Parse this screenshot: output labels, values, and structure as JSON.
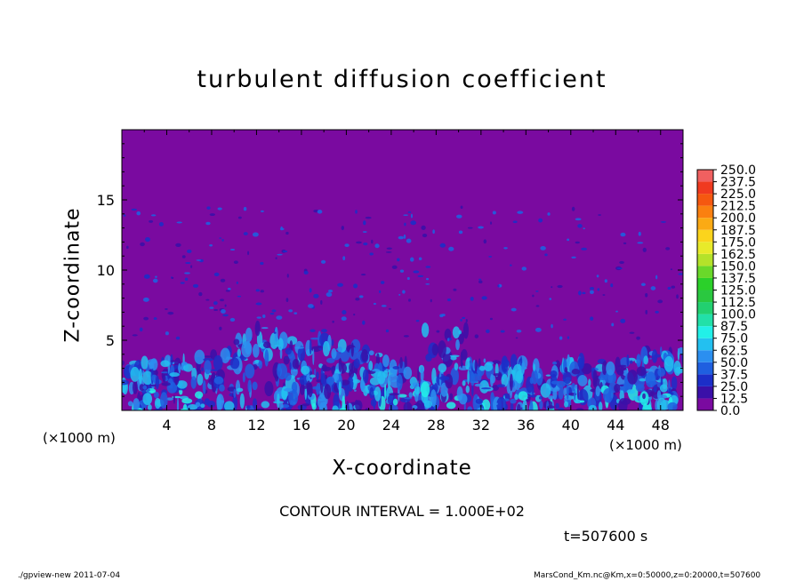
{
  "chart_data": {
    "type": "heatmap",
    "title": "turbulent diffusion coefficient",
    "xlabel": "X-coordinate",
    "ylabel": "Z-coordinate",
    "x_unit": "(×1000 m)",
    "xlim": [
      0,
      50
    ],
    "ylim": [
      0,
      20
    ],
    "x_ticks": [
      4,
      8,
      12,
      16,
      20,
      24,
      28,
      32,
      36,
      40,
      44,
      48
    ],
    "y_ticks": [
      5,
      10,
      15
    ],
    "colorbar": {
      "levels": [
        "0.0",
        "12.5",
        "25.0",
        "37.5",
        "50.0",
        "62.5",
        "75.0",
        "87.5",
        "100.0",
        "112.5",
        "125.0",
        "137.5",
        "150.0",
        "162.5",
        "175.0",
        "187.5",
        "200.0",
        "212.5",
        "225.0",
        "237.5",
        "250.0"
      ],
      "colors": [
        "#7a0aa0",
        "#3a10a8",
        "#1c2ec8",
        "#1f5fe0",
        "#2b8ff0",
        "#23c0f0",
        "#22f0e8",
        "#22e0a8",
        "#22d070",
        "#2ac840",
        "#2bd02a",
        "#6ad82a",
        "#b4e22a",
        "#e8ea2a",
        "#fbd41c",
        "#fbaa14",
        "#fa8010",
        "#f55810",
        "#f03a20",
        "#f06060"
      ]
    },
    "contour_interval": "CONTOUR INTERVAL = 1.000E+02",
    "time_label": "t=507600 s",
    "footer_left": "./gpview-new   2011-07-04",
    "footer_right": "MarsCond_Km.nc@Km,x=0:50000,z=0:20000,t=507600"
  }
}
